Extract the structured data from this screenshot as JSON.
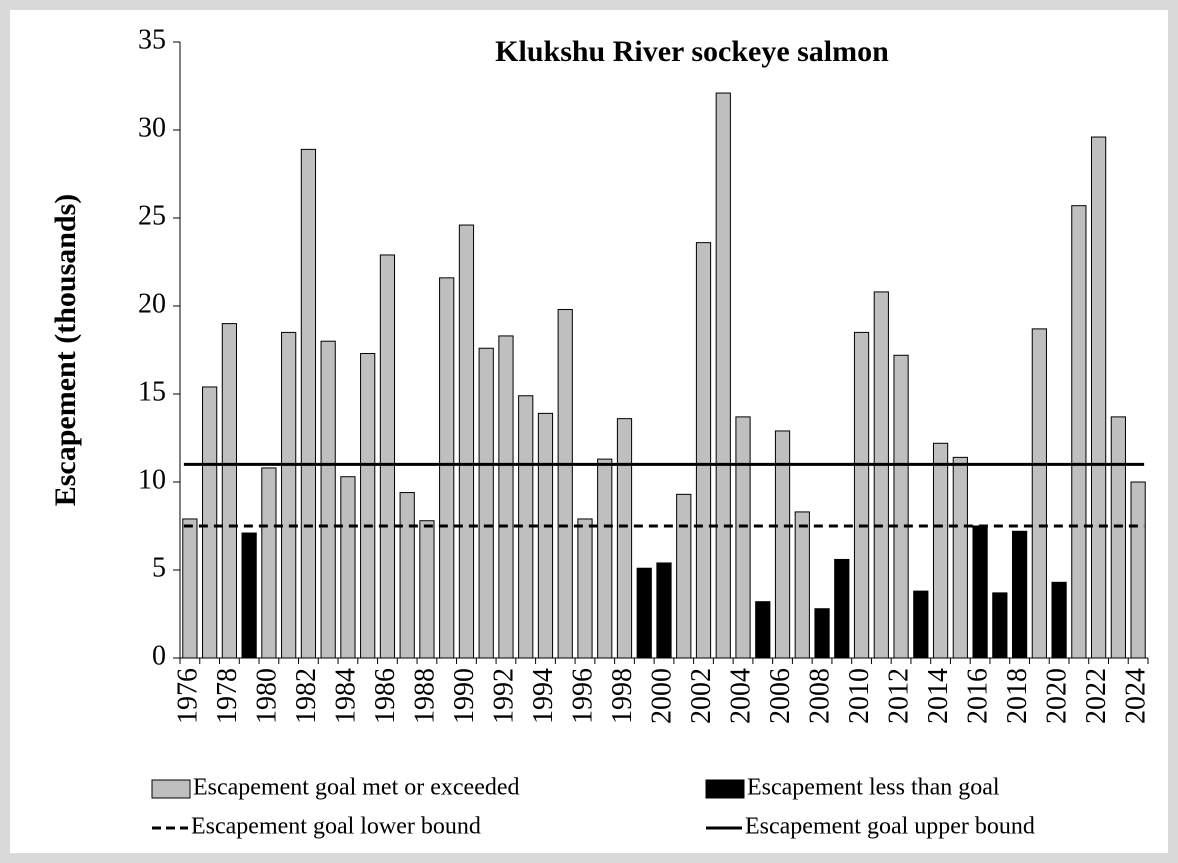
{
  "chart_data": {
    "type": "bar",
    "title": "Klukshu River sockeye salmon",
    "y_label": "Escapement (thousands)",
    "categories": [
      "1976",
      null,
      "1978",
      null,
      "1980",
      null,
      "1982",
      null,
      "1984",
      null,
      "1986",
      null,
      "1988",
      null,
      "1990",
      null,
      "1992",
      null,
      "1994",
      null,
      "1996",
      null,
      "1998",
      null,
      "2000",
      null,
      "2002",
      null,
      "2004",
      null,
      "2006",
      null,
      "2008",
      null,
      "2010",
      null,
      "2012",
      null,
      "2014",
      null,
      "2016",
      null,
      "2018",
      null,
      "2020",
      null,
      "2022",
      null,
      "2024"
    ],
    "series": [
      {
        "name": "Escapement goal met or exceeded",
        "color": "#bfbfbf",
        "values": [
          7.9,
          15.4,
          19.0,
          null,
          10.8,
          18.5,
          28.9,
          18.0,
          10.3,
          17.3,
          22.9,
          9.4,
          7.8,
          21.6,
          24.6,
          17.6,
          18.3,
          14.9,
          13.9,
          19.8,
          7.9,
          11.3,
          13.6,
          null,
          null,
          9.3,
          23.6,
          32.1,
          13.7,
          null,
          12.9,
          8.3,
          null,
          null,
          18.5,
          20.8,
          17.2,
          null,
          12.2,
          11.4,
          null,
          null,
          null,
          18.7,
          null,
          25.7,
          29.6,
          13.7,
          10.0
        ]
      },
      {
        "name": "Escapement less than goal",
        "color": "#000000",
        "values": [
          null,
          null,
          null,
          7.1,
          null,
          null,
          null,
          null,
          null,
          null,
          null,
          null,
          null,
          null,
          null,
          null,
          null,
          null,
          null,
          null,
          null,
          null,
          null,
          5.1,
          5.4,
          null,
          null,
          null,
          null,
          3.2,
          null,
          null,
          2.8,
          5.6,
          null,
          null,
          null,
          3.8,
          null,
          null,
          7.5,
          3.7,
          7.2,
          null,
          4.3,
          null,
          null,
          null,
          null
        ]
      }
    ],
    "reference_lines": [
      {
        "name": "Escapement goal lower bound",
        "value": 7.5,
        "dashed": true,
        "color": "#000000"
      },
      {
        "name": "Escapement goal upper bound",
        "value": 11,
        "dashed": false,
        "color": "#000000"
      }
    ],
    "ylim": [
      0,
      35
    ],
    "yticks": [
      0,
      5,
      10,
      15,
      20,
      25,
      30,
      35
    ],
    "grid": false
  }
}
